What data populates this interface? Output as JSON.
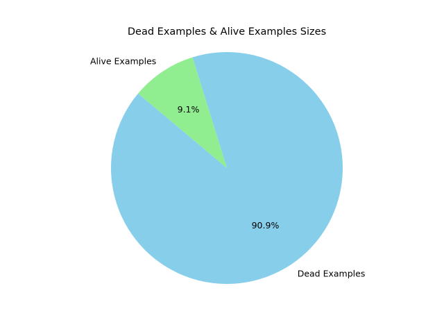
{
  "chart_data": {
    "type": "pie",
    "title": "Dead Examples & Alive Examples Sizes",
    "labels": [
      "Dead Examples",
      "Alive Examples"
    ],
    "values": [
      90.9,
      9.1
    ],
    "percent_labels": [
      "90.9%",
      "9.1%"
    ],
    "colors": [
      "#87CEEB",
      "#90EE90"
    ],
    "start_angle_deg": 140,
    "legend": "none"
  }
}
